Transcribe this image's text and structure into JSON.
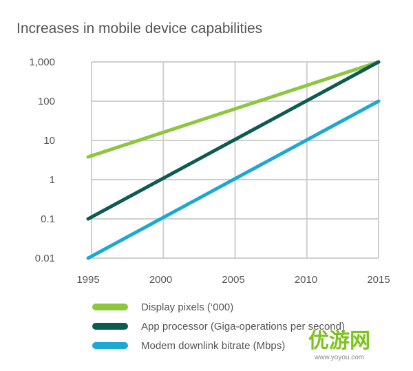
{
  "chart_data": {
    "type": "line",
    "title": "Increases in mobile device capabilities",
    "xlabel": "",
    "ylabel": "",
    "x": [
      1995,
      2015
    ],
    "xlim": [
      1995,
      2015
    ],
    "xticks": [
      "1995",
      "2000",
      "2005",
      "2010",
      "2015"
    ],
    "yscale": "log",
    "ylim": [
      0.01,
      1000
    ],
    "yticks": [
      "0.01",
      "0.1",
      "1",
      "10",
      "100",
      "1,000"
    ],
    "grid": true,
    "legend_position": "bottom",
    "series": [
      {
        "name": "Display pixels ('000)",
        "values": [
          3.8,
          1000
        ],
        "color": "#8dc63f"
      },
      {
        "name": "App processor (Giga-operations per second)",
        "values": [
          0.1,
          1000
        ],
        "color": "#0b5b51"
      },
      {
        "name": "Modem downlink bitrate (Mbps)",
        "values": [
          0.01,
          100
        ],
        "color": "#1ba9d3"
      }
    ]
  },
  "watermark": {
    "text": "优游网",
    "url": "www.yoyou.com"
  }
}
